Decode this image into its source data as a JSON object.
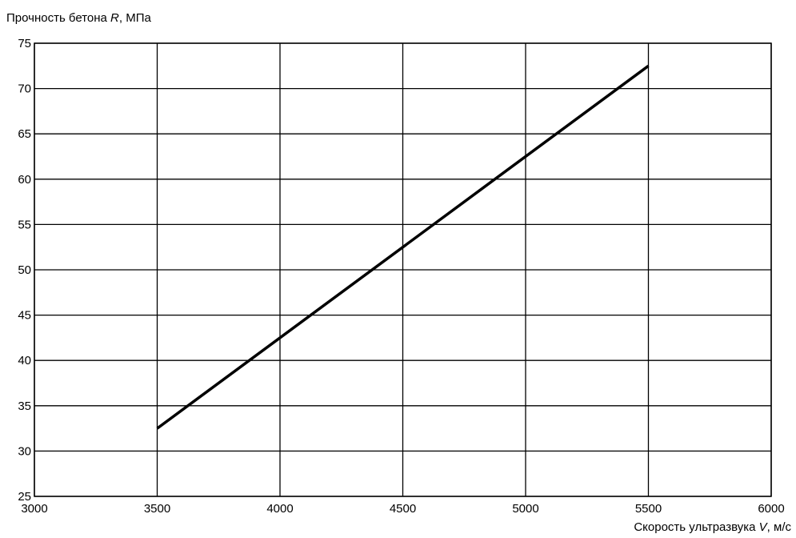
{
  "chart_data": {
    "type": "line",
    "ylabel_prefix": "Прочность бетона ",
    "ylabel_var": "R",
    "ylabel_suffix": ", МПа",
    "xlabel_prefix": "Скорость ультразвука ",
    "xlabel_var": "V",
    "xlabel_suffix": ", м/с",
    "xlim": [
      3000,
      6000
    ],
    "ylim": [
      25,
      75
    ],
    "xticks": [
      3000,
      3500,
      4000,
      4500,
      5000,
      5500,
      6000
    ],
    "yticks": [
      25,
      30,
      35,
      40,
      45,
      50,
      55,
      60,
      65,
      70,
      75
    ],
    "grid": true,
    "line_color": "#000000",
    "series": [
      {
        "x": [
          3500,
          5500
        ],
        "y": [
          32.5,
          72.5
        ]
      }
    ]
  }
}
